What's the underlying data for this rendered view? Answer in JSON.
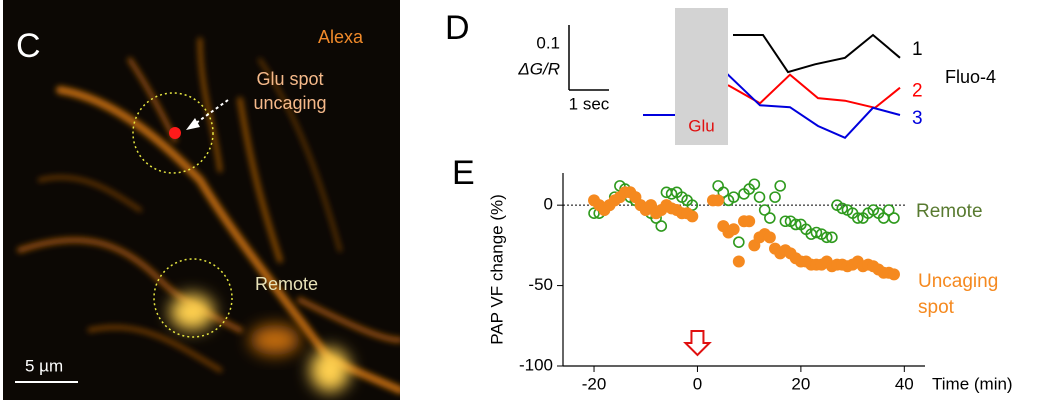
{
  "panel_c": {
    "label": "C",
    "channel": "Alexa",
    "annotation_lines": [
      "Glu spot",
      "uncaging"
    ],
    "region_label": "Remote",
    "scalebar_label": "5 µm"
  },
  "chart_data": [
    {
      "type": "line",
      "label": "D",
      "ylabel": "ΔG/R",
      "legend_title": "Fluo-4",
      "shade": {
        "x": [
          0.8,
          2.125
        ],
        "label": "Glu"
      },
      "scalebar": {
        "x": {
          "value": 1,
          "label": "1 sec"
        },
        "y": 0.1
      },
      "series": [
        {
          "name": "1",
          "color": "#000000",
          "x": [
            2.25,
            3.0,
            3.625,
            4.3,
            5.05,
            5.75,
            6.425
          ],
          "values": [
            0.123,
            0.123,
            0.066,
            0.078,
            0.088,
            0.123,
            0.088
          ]
        },
        {
          "name": "2",
          "color": "#ff0000",
          "x": [
            2.125,
            2.925,
            3.675,
            4.375,
            5.05,
            5.8,
            6.425
          ],
          "values": [
            0.046,
            0.018,
            0.062,
            0.026,
            0.022,
            0.011,
            0.042
          ]
        },
        {
          "name": "3",
          "color": "#0000dd",
          "x": [
            0,
            0.8,
            2.125,
            2.925,
            3.675,
            4.375,
            5.05,
            5.75,
            6.425
          ],
          "values": [
            0,
            0,
            0.062,
            0.015,
            0.012,
            -0.017,
            -0.035,
            0.011,
            0
          ]
        }
      ]
    },
    {
      "type": "scatter",
      "label": "E",
      "xlabel": "Time (min)",
      "ylabel": "PAP VF change (%)",
      "xlim": [
        -26,
        44
      ],
      "ylim": [
        -100,
        20
      ],
      "xticks": [
        -20,
        0,
        20,
        40
      ],
      "yticks": [
        -100,
        -50,
        0
      ],
      "reference_line": 0,
      "series": [
        {
          "name": "Remote",
          "color": "#2f9a1e",
          "marker": "open",
          "x": [
            -20,
            -19,
            -18,
            -17,
            -16,
            -15,
            -14,
            -13,
            -12,
            -11,
            -10,
            -9,
            -8,
            -7,
            -6,
            -5,
            -4,
            -3,
            -2,
            -1,
            4,
            5,
            6,
            7,
            8,
            9,
            10,
            11,
            12,
            13,
            14,
            15,
            16,
            17,
            18,
            19,
            20,
            21,
            22,
            23,
            24,
            25,
            26,
            27,
            28,
            29,
            30,
            31,
            32,
            33,
            34,
            35,
            36,
            37,
            38
          ],
          "values": [
            -5,
            -5,
            -3,
            0,
            5,
            12,
            10,
            5,
            3,
            0,
            -3,
            -5,
            -8,
            -13,
            8,
            7,
            8,
            5,
            3,
            0,
            12,
            8,
            3,
            5,
            -23,
            7,
            10,
            13,
            5,
            -3,
            -8,
            5,
            12,
            -10,
            -10,
            -12,
            -12,
            -15,
            -18,
            -17,
            -18,
            -20,
            -20,
            0,
            -2,
            -3,
            -5,
            -8,
            -8,
            -5,
            -3,
            -5,
            -8,
            -3,
            -8
          ]
        },
        {
          "name": "Uncaging spot",
          "color": "#f5891f",
          "marker": "filled",
          "x": [
            -20,
            -19,
            -18,
            -17,
            -16,
            -15,
            -14,
            -13,
            -12,
            -11,
            -10,
            -9,
            -8,
            -7,
            -6,
            -5,
            -4,
            -3,
            -2,
            -1,
            3,
            4,
            5,
            6,
            7,
            8,
            9,
            10,
            11,
            12,
            13,
            14,
            15,
            16,
            17,
            18,
            19,
            20,
            21,
            22,
            23,
            24,
            25,
            26,
            27,
            28,
            29,
            30,
            31,
            32,
            33,
            34,
            35,
            36,
            37,
            38
          ],
          "values": [
            3,
            0,
            -3,
            0,
            3,
            5,
            8,
            8,
            5,
            0,
            -3,
            0,
            -5,
            -3,
            0,
            -2,
            -3,
            -5,
            -5,
            -7,
            3,
            3,
            -13,
            -17,
            -15,
            -35,
            -10,
            -10,
            -25,
            -20,
            -18,
            -20,
            -27,
            -30,
            -28,
            -30,
            -33,
            -35,
            -35,
            -37,
            -37,
            -37,
            -35,
            -38,
            -37,
            -37,
            -38,
            -37,
            -35,
            -38,
            -37,
            -38,
            -40,
            -42,
            -42,
            -43
          ]
        }
      ]
    }
  ]
}
